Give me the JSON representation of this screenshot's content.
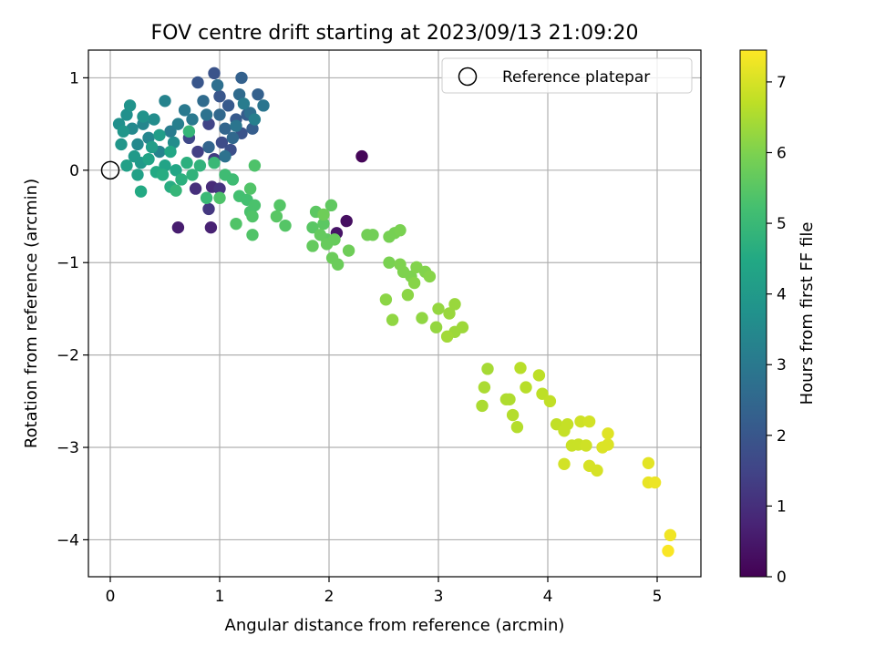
{
  "chart_data": {
    "type": "scatter",
    "title": "FOV centre drift starting at 2023/09/13 21:09:20",
    "xlabel": "Angular distance from reference (arcmin)",
    "ylabel": "Rotation from reference (arcmin)",
    "xlim": [
      -0.2,
      5.4
    ],
    "ylim": [
      -4.4,
      1.3
    ],
    "xticks": [
      0,
      1,
      2,
      3,
      4,
      5
    ],
    "yticks": [
      1,
      0,
      -1,
      -2,
      -3,
      -4
    ],
    "xtick_labels": [
      "0",
      "1",
      "2",
      "3",
      "4",
      "5"
    ],
    "ytick_labels": [
      "1",
      "0",
      "−1",
      "−2",
      "−3",
      "−4"
    ],
    "grid": true,
    "legend": {
      "placement": "top-right",
      "entries": [
        "Reference platepar"
      ]
    },
    "colorbar": {
      "label": "Hours from first FF file",
      "range": [
        0,
        7.45
      ],
      "ticks": [
        0,
        1,
        2,
        3,
        4,
        5,
        6,
        7
      ],
      "tick_labels": [
        "0",
        "1",
        "2",
        "3",
        "4",
        "5",
        "6",
        "7"
      ],
      "colormap": "viridis"
    },
    "reference_point": {
      "x": 0,
      "y": 0
    },
    "points": [
      [
        2.3,
        0.15,
        0.1
      ],
      [
        2.16,
        -0.55,
        0.3
      ],
      [
        2.07,
        -0.68,
        0.4
      ],
      [
        0.62,
        -0.62,
        0.6
      ],
      [
        0.92,
        -0.62,
        0.7
      ],
      [
        0.93,
        -0.18,
        0.9
      ],
      [
        0.78,
        -0.2,
        1.0
      ],
      [
        1.0,
        -0.2,
        1.1
      ],
      [
        0.9,
        -0.42,
        1.2
      ],
      [
        0.95,
        0.12,
        1.3
      ],
      [
        0.8,
        0.2,
        1.4
      ],
      [
        0.9,
        0.5,
        1.5
      ],
      [
        0.72,
        0.35,
        1.6
      ],
      [
        1.02,
        0.3,
        1.7
      ],
      [
        1.1,
        0.22,
        1.8
      ],
      [
        1.2,
        0.4,
        1.9
      ],
      [
        0.95,
        1.05,
        1.9
      ],
      [
        0.8,
        0.95,
        2.0
      ],
      [
        1.0,
        0.8,
        2.0
      ],
      [
        1.08,
        0.7,
        2.1
      ],
      [
        1.15,
        0.55,
        2.1
      ],
      [
        1.25,
        0.6,
        2.2
      ],
      [
        1.3,
        0.45,
        2.2
      ],
      [
        1.35,
        0.82,
        2.3
      ],
      [
        1.2,
        1.0,
        2.3
      ],
      [
        1.05,
        0.45,
        2.4
      ],
      [
        0.9,
        0.25,
        2.4
      ],
      [
        1.0,
        0.6,
        2.5
      ],
      [
        1.12,
        0.35,
        2.5
      ],
      [
        1.18,
        0.82,
        2.6
      ],
      [
        0.85,
        0.75,
        2.6
      ],
      [
        0.98,
        0.92,
        2.7
      ],
      [
        1.28,
        0.62,
        2.7
      ],
      [
        1.05,
        0.15,
        2.8
      ],
      [
        0.88,
        0.6,
        2.8
      ],
      [
        1.4,
        0.7,
        2.9
      ],
      [
        1.15,
        0.48,
        2.9
      ],
      [
        0.68,
        0.65,
        3.0
      ],
      [
        0.75,
        0.55,
        3.0
      ],
      [
        1.22,
        0.72,
        3.1
      ],
      [
        0.55,
        0.42,
        3.1
      ],
      [
        1.32,
        0.55,
        3.2
      ],
      [
        0.62,
        0.5,
        3.2
      ],
      [
        0.5,
        0.75,
        3.3
      ],
      [
        0.45,
        0.2,
        3.3
      ],
      [
        0.35,
        0.35,
        3.4
      ],
      [
        0.3,
        0.5,
        3.4
      ],
      [
        0.25,
        0.28,
        3.5
      ],
      [
        0.2,
        0.45,
        3.5
      ],
      [
        0.58,
        0.3,
        3.6
      ],
      [
        0.4,
        0.55,
        3.6
      ],
      [
        0.15,
        0.6,
        3.7
      ],
      [
        0.08,
        0.5,
        3.7
      ],
      [
        0.18,
        0.7,
        3.8
      ],
      [
        0.3,
        0.58,
        3.8
      ],
      [
        0.12,
        0.42,
        3.9
      ],
      [
        0.1,
        0.28,
        3.9
      ],
      [
        0.22,
        0.15,
        4.0
      ],
      [
        0.28,
        0.08,
        4.0
      ],
      [
        0.38,
        0.25,
        4.1
      ],
      [
        0.45,
        0.38,
        4.1
      ],
      [
        0.15,
        0.05,
        4.2
      ],
      [
        0.25,
        -0.05,
        4.2
      ],
      [
        0.35,
        0.12,
        4.3
      ],
      [
        0.5,
        0.05,
        4.3
      ],
      [
        0.55,
        0.2,
        4.4
      ],
      [
        0.6,
        0.0,
        4.4
      ],
      [
        0.28,
        -0.23,
        4.5
      ],
      [
        0.42,
        -0.02,
        4.5
      ],
      [
        0.55,
        -0.18,
        4.6
      ],
      [
        0.48,
        -0.05,
        4.6
      ],
      [
        0.7,
        0.08,
        4.7
      ],
      [
        0.65,
        -0.1,
        4.7
      ],
      [
        0.75,
        -0.05,
        4.8
      ],
      [
        0.82,
        0.05,
        4.8
      ],
      [
        0.6,
        -0.22,
        4.9
      ],
      [
        0.72,
        0.42,
        4.9
      ],
      [
        0.88,
        -0.3,
        5.0
      ],
      [
        0.95,
        0.08,
        5.0
      ],
      [
        1.05,
        -0.05,
        5.1
      ],
      [
        1.12,
        -0.1,
        5.1
      ],
      [
        1.18,
        -0.28,
        5.2
      ],
      [
        1.25,
        -0.32,
        5.2
      ],
      [
        1.32,
        -0.38,
        5.3
      ],
      [
        1.28,
        -0.45,
        5.3
      ],
      [
        1.32,
        0.05,
        5.35
      ],
      [
        1.0,
        -0.3,
        5.35
      ],
      [
        1.15,
        -0.58,
        5.4
      ],
      [
        1.3,
        -0.7,
        5.4
      ],
      [
        1.3,
        -0.5,
        5.4
      ],
      [
        1.28,
        -0.2,
        5.4
      ],
      [
        1.55,
        -0.38,
        5.45
      ],
      [
        1.6,
        -0.6,
        5.45
      ],
      [
        1.52,
        -0.5,
        5.5
      ],
      [
        1.85,
        -0.62,
        5.5
      ],
      [
        1.88,
        -0.45,
        5.55
      ],
      [
        1.95,
        -0.58,
        5.55
      ],
      [
        2.02,
        -0.38,
        5.6
      ],
      [
        1.98,
        -0.75,
        5.6
      ],
      [
        1.85,
        -0.82,
        5.65
      ],
      [
        1.92,
        -0.7,
        5.65
      ],
      [
        1.98,
        -0.8,
        5.7
      ],
      [
        2.05,
        -0.75,
        5.7
      ],
      [
        2.03,
        -0.95,
        5.75
      ],
      [
        2.08,
        -1.02,
        5.75
      ],
      [
        2.18,
        -0.87,
        5.8
      ],
      [
        1.95,
        -0.48,
        5.8
      ],
      [
        2.35,
        -0.7,
        5.85
      ],
      [
        2.4,
        -0.7,
        5.85
      ],
      [
        2.55,
        -0.72,
        5.9
      ],
      [
        2.6,
        -0.68,
        5.9
      ],
      [
        2.65,
        -0.65,
        5.95
      ],
      [
        2.55,
        -1.0,
        5.95
      ],
      [
        2.65,
        -1.02,
        6.0
      ],
      [
        2.68,
        -1.1,
        6.0
      ],
      [
        2.75,
        -1.15,
        6.0
      ],
      [
        2.8,
        -1.05,
        6.05
      ],
      [
        2.88,
        -1.1,
        6.05
      ],
      [
        2.92,
        -1.15,
        6.1
      ],
      [
        2.78,
        -1.22,
        6.1
      ],
      [
        2.72,
        -1.35,
        6.15
      ],
      [
        2.52,
        -1.4,
        6.15
      ],
      [
        2.58,
        -1.62,
        6.2
      ],
      [
        2.85,
        -1.6,
        6.2
      ],
      [
        2.98,
        -1.7,
        6.25
      ],
      [
        3.0,
        -1.5,
        6.25
      ],
      [
        3.1,
        -1.55,
        6.3
      ],
      [
        3.15,
        -1.45,
        6.3
      ],
      [
        3.15,
        -1.75,
        6.35
      ],
      [
        3.22,
        -1.7,
        6.35
      ],
      [
        3.08,
        -1.8,
        6.4
      ],
      [
        3.45,
        -2.15,
        6.45
      ],
      [
        3.42,
        -2.35,
        6.5
      ],
      [
        3.4,
        -2.55,
        6.5
      ],
      [
        3.62,
        -2.48,
        6.55
      ],
      [
        3.65,
        -2.48,
        6.55
      ],
      [
        3.72,
        -2.78,
        6.6
      ],
      [
        3.68,
        -2.65,
        6.6
      ],
      [
        3.75,
        -2.14,
        6.65
      ],
      [
        3.8,
        -2.35,
        6.65
      ],
      [
        3.92,
        -2.22,
        6.7
      ],
      [
        3.95,
        -2.42,
        6.7
      ],
      [
        4.02,
        -2.5,
        6.75
      ],
      [
        4.08,
        -2.75,
        6.75
      ],
      [
        4.15,
        -2.82,
        6.8
      ],
      [
        4.18,
        -2.75,
        6.8
      ],
      [
        4.22,
        -2.98,
        6.85
      ],
      [
        4.28,
        -2.97,
        6.85
      ],
      [
        4.35,
        -2.98,
        6.9
      ],
      [
        4.3,
        -2.72,
        6.9
      ],
      [
        4.38,
        -2.72,
        6.95
      ],
      [
        4.15,
        -3.18,
        6.95
      ],
      [
        4.38,
        -3.2,
        7.0
      ],
      [
        4.45,
        -3.25,
        7.0
      ],
      [
        4.5,
        -3.0,
        7.05
      ],
      [
        4.55,
        -2.97,
        7.05
      ],
      [
        4.55,
        -2.85,
        7.1
      ],
      [
        4.92,
        -3.17,
        7.15
      ],
      [
        4.92,
        -3.38,
        7.2
      ],
      [
        4.98,
        -3.38,
        7.25
      ],
      [
        5.12,
        -3.95,
        7.3
      ],
      [
        5.1,
        -4.12,
        7.4
      ]
    ]
  }
}
